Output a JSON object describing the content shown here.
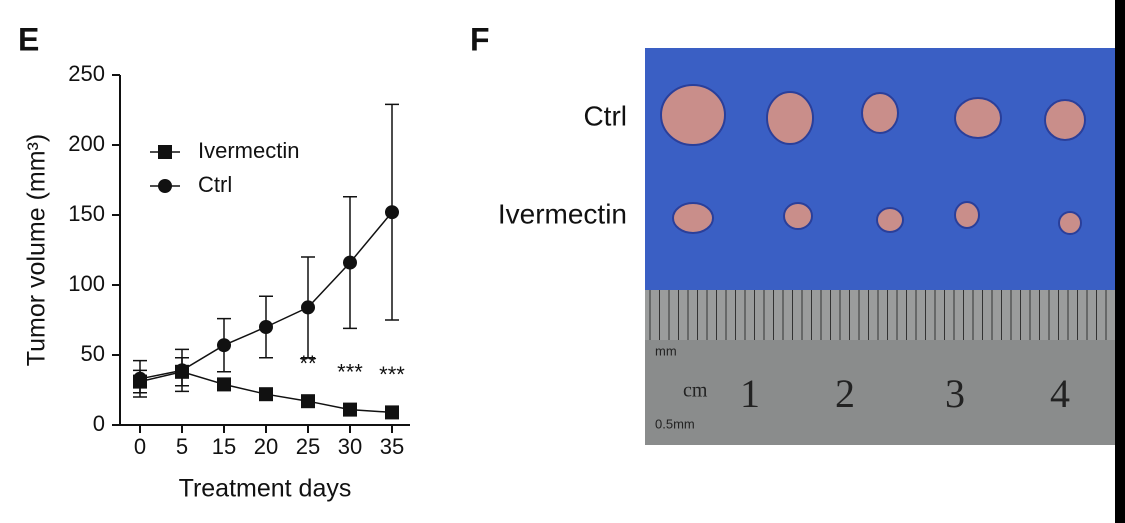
{
  "panel_e": {
    "label": "E"
  },
  "panel_f": {
    "label": "F",
    "row_labels": [
      "Ctrl",
      "Ivermectin"
    ],
    "ruler_labels": [
      "1",
      "2",
      "3",
      "4"
    ],
    "ruler_unit": "cm",
    "ruler_mm": "mm",
    "ruler_half": "0.5mm"
  },
  "chart_data": {
    "type": "line",
    "x_label": "Treatment days",
    "y_label": "Tumor volume (mm³)",
    "categories": [
      "0",
      "5",
      "15",
      "20",
      "25",
      "30",
      "35"
    ],
    "series": [
      {
        "name": "Ivermectin",
        "color": "#111111",
        "marker": "square",
        "values": [
          31,
          38,
          29,
          22,
          17,
          11,
          9
        ],
        "errors": [
          8,
          10,
          3,
          2,
          2,
          2,
          2
        ]
      },
      {
        "name": "Ctrl",
        "color": "#111111",
        "marker": "circle",
        "values": [
          33,
          39,
          57,
          70,
          84,
          116,
          152
        ],
        "errors": [
          13,
          15,
          19,
          22,
          36,
          47,
          77
        ]
      }
    ],
    "annotations": [
      {
        "text": "**",
        "category": "25"
      },
      {
        "text": "***",
        "category": "30"
      },
      {
        "text": "***",
        "category": "35"
      }
    ],
    "ylim": [
      0,
      250
    ],
    "yticks": [
      0,
      50,
      100,
      150,
      200,
      250
    ],
    "legend": "upper-left"
  }
}
